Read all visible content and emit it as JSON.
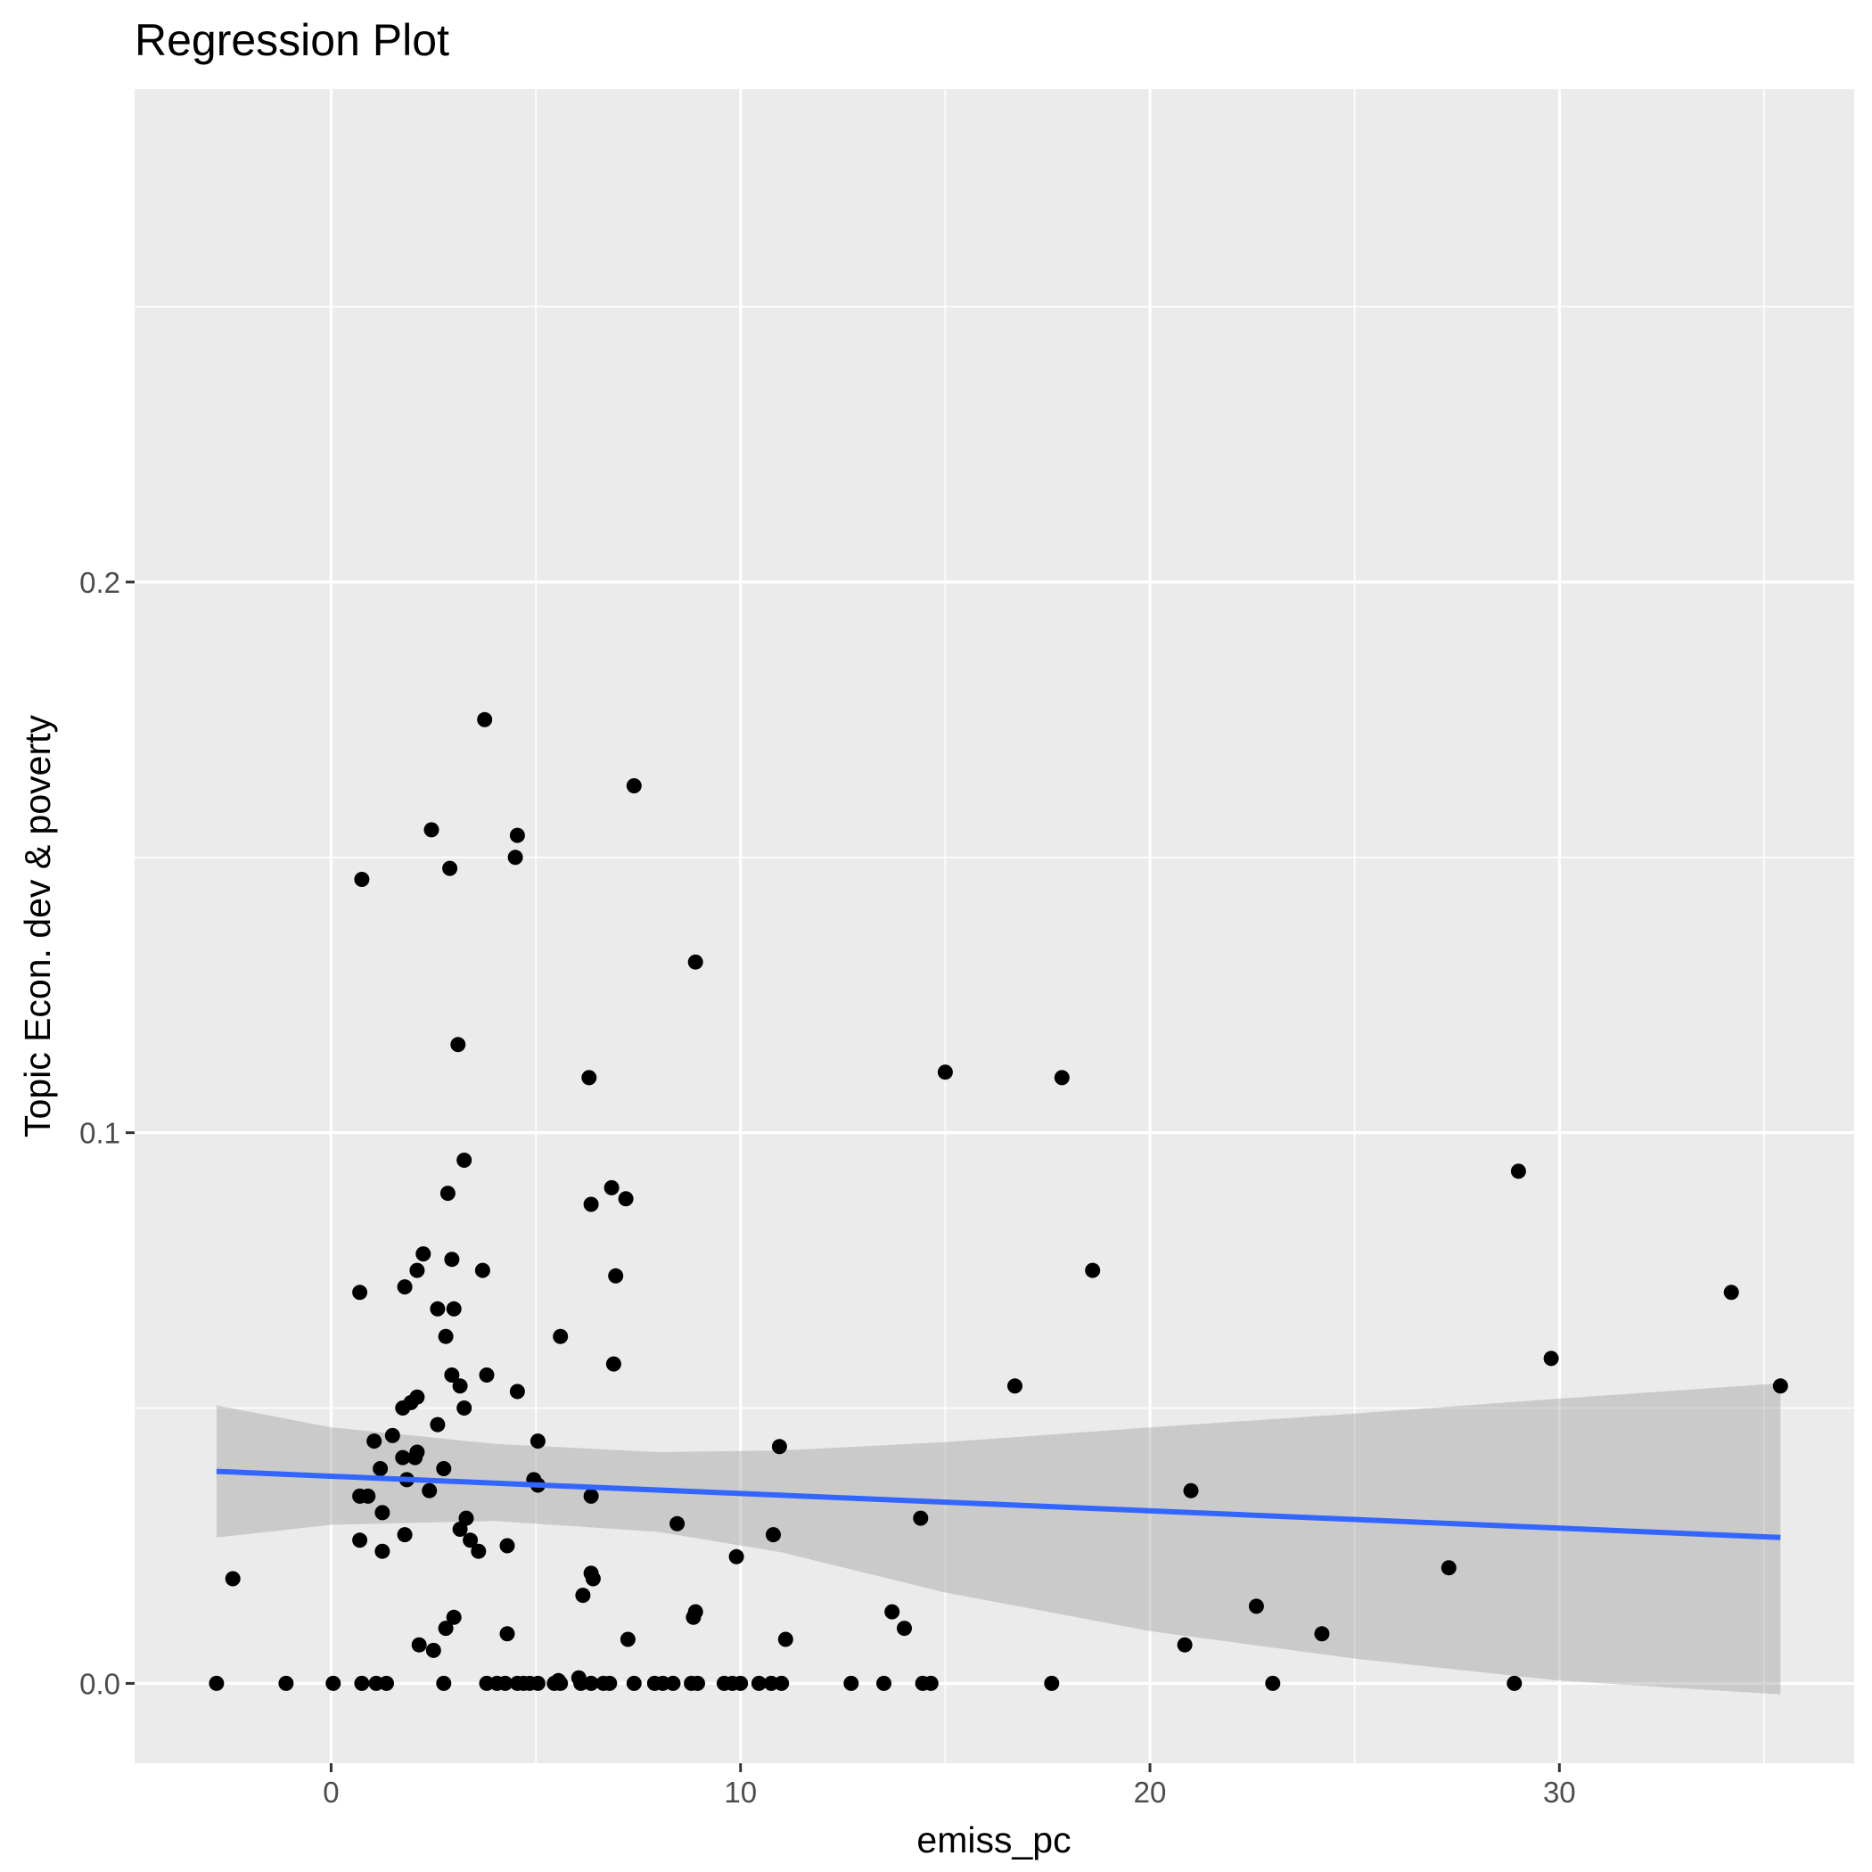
{
  "chart_data": {
    "type": "scatter",
    "title": "Regression Plot",
    "xlabel": "emiss_pc",
    "ylabel": "Topic Econ. dev & poverty",
    "xlim": [
      -4.8,
      37.2
    ],
    "ylim": [
      -0.0145,
      0.2895
    ],
    "x_ticks": [
      0,
      10,
      20,
      30
    ],
    "x_tick_labels": [
      "0",
      "10",
      "20",
      "30"
    ],
    "y_ticks": [
      0.0,
      0.1,
      0.2
    ],
    "y_tick_labels": [
      "0.0",
      "0.1",
      "0.2"
    ],
    "x_minor_ticks": [
      -5,
      5,
      15,
      25,
      35
    ],
    "y_minor_ticks": [
      0.05,
      0.15,
      0.25
    ],
    "grid": true,
    "colors": {
      "panel": "#ebebeb",
      "grid": "#ffffff",
      "points": "#000000",
      "line": "#3366ff",
      "ribbon": "#999999"
    },
    "points": [
      [
        -2.8,
        0
      ],
      [
        -1.1,
        0
      ],
      [
        0.05,
        0
      ],
      [
        0.75,
        0
      ],
      [
        1.1,
        0
      ],
      [
        1.35,
        0
      ],
      [
        2.75,
        0
      ],
      [
        3.8,
        0
      ],
      [
        4.05,
        0
      ],
      [
        4.25,
        0
      ],
      [
        4.55,
        0
      ],
      [
        4.7,
        0
      ],
      [
        4.85,
        0
      ],
      [
        5.05,
        0
      ],
      [
        5.45,
        0
      ],
      [
        5.6,
        0
      ],
      [
        6.1,
        0
      ],
      [
        6.35,
        0
      ],
      [
        6.65,
        0
      ],
      [
        6.8,
        0
      ],
      [
        7.4,
        0
      ],
      [
        7.9,
        0
      ],
      [
        8.1,
        0
      ],
      [
        8.35,
        0
      ],
      [
        8.8,
        0
      ],
      [
        8.95,
        0
      ],
      [
        9.6,
        0
      ],
      [
        9.8,
        0
      ],
      [
        10.0,
        0
      ],
      [
        10.45,
        0
      ],
      [
        10.75,
        0
      ],
      [
        11.0,
        0
      ],
      [
        12.7,
        0
      ],
      [
        13.5,
        0
      ],
      [
        14.45,
        0
      ],
      [
        14.65,
        0
      ],
      [
        17.6,
        0
      ],
      [
        23.0,
        0
      ],
      [
        28.9,
        0
      ],
      [
        6.05,
        0.001
      ],
      [
        5.55,
        0.0005
      ],
      [
        3.75,
        0.175
      ],
      [
        7.4,
        0.163
      ],
      [
        2.45,
        0.155
      ],
      [
        4.55,
        0.154
      ],
      [
        4.5,
        0.15
      ],
      [
        2.9,
        0.148
      ],
      [
        0.75,
        0.146
      ],
      [
        8.9,
        0.131
      ],
      [
        3.1,
        0.116
      ],
      [
        6.3,
        0.11
      ],
      [
        15.0,
        0.111
      ],
      [
        17.85,
        0.11
      ],
      [
        3.25,
        0.095
      ],
      [
        29.0,
        0.093
      ],
      [
        2.85,
        0.089
      ],
      [
        6.85,
        0.09
      ],
      [
        7.2,
        0.088
      ],
      [
        6.35,
        0.087
      ],
      [
        2.25,
        0.078
      ],
      [
        2.95,
        0.077
      ],
      [
        2.1,
        0.075
      ],
      [
        3.7,
        0.075
      ],
      [
        18.6,
        0.075
      ],
      [
        6.95,
        0.074
      ],
      [
        0.7,
        0.071
      ],
      [
        1.8,
        0.072
      ],
      [
        34.2,
        0.071
      ],
      [
        2.6,
        0.068
      ],
      [
        3.0,
        0.068
      ],
      [
        2.8,
        0.063
      ],
      [
        5.6,
        0.063
      ],
      [
        6.9,
        0.058
      ],
      [
        29.8,
        0.059
      ],
      [
        2.95,
        0.056
      ],
      [
        3.8,
        0.056
      ],
      [
        3.15,
        0.054
      ],
      [
        16.7,
        0.054
      ],
      [
        4.55,
        0.053
      ],
      [
        35.4,
        0.054
      ],
      [
        2.1,
        0.052
      ],
      [
        1.95,
        0.051
      ],
      [
        1.75,
        0.05
      ],
      [
        3.25,
        0.05
      ],
      [
        2.6,
        0.047
      ],
      [
        1.5,
        0.045
      ],
      [
        1.05,
        0.044
      ],
      [
        5.05,
        0.044
      ],
      [
        10.95,
        0.043
      ],
      [
        2.1,
        0.042
      ],
      [
        2.05,
        0.041
      ],
      [
        1.75,
        0.041
      ],
      [
        1.2,
        0.039
      ],
      [
        2.75,
        0.039
      ],
      [
        1.85,
        0.037
      ],
      [
        4.95,
        0.037
      ],
      [
        5.05,
        0.036
      ],
      [
        21.0,
        0.035
      ],
      [
        2.4,
        0.035
      ],
      [
        0.7,
        0.034
      ],
      [
        0.9,
        0.034
      ],
      [
        6.35,
        0.034
      ],
      [
        1.25,
        0.031
      ],
      [
        3.3,
        0.03
      ],
      [
        14.4,
        0.03
      ],
      [
        8.45,
        0.029
      ],
      [
        3.15,
        0.028
      ],
      [
        1.8,
        0.027
      ],
      [
        10.8,
        0.027
      ],
      [
        0.7,
        0.026
      ],
      [
        3.4,
        0.026
      ],
      [
        4.3,
        0.025
      ],
      [
        1.25,
        0.024
      ],
      [
        3.6,
        0.024
      ],
      [
        9.9,
        0.023
      ],
      [
        -2.4,
        0.019
      ],
      [
        6.35,
        0.02
      ],
      [
        27.3,
        0.021
      ],
      [
        6.4,
        0.019
      ],
      [
        6.15,
        0.016
      ],
      [
        22.6,
        0.014
      ],
      [
        3.0,
        0.012
      ],
      [
        8.9,
        0.013
      ],
      [
        8.85,
        0.012
      ],
      [
        13.7,
        0.013
      ],
      [
        2.8,
        0.01
      ],
      [
        14.0,
        0.01
      ],
      [
        24.2,
        0.009
      ],
      [
        4.3,
        0.009
      ],
      [
        11.1,
        0.008
      ],
      [
        7.25,
        0.008
      ],
      [
        2.15,
        0.007
      ],
      [
        20.85,
        0.007
      ],
      [
        2.5,
        0.006
      ]
    ],
    "regression": {
      "x_start": -2.8,
      "x_end": 35.4,
      "fit": [
        [
          -2.8,
          0.0385
        ],
        [
          35.4,
          0.0265
        ]
      ],
      "ribbon_upper": [
        [
          -2.8,
          0.0505
        ],
        [
          0,
          0.0465
        ],
        [
          4,
          0.0435
        ],
        [
          8,
          0.042
        ],
        [
          11,
          0.0423
        ],
        [
          15,
          0.0438
        ],
        [
          20,
          0.0465
        ],
        [
          25,
          0.049
        ],
        [
          30,
          0.0517
        ],
        [
          35.4,
          0.0545
        ]
      ],
      "ribbon_lower": [
        [
          -2.8,
          0.0265
        ],
        [
          0,
          0.0288
        ],
        [
          4,
          0.0295
        ],
        [
          8,
          0.0275
        ],
        [
          11,
          0.0238
        ],
        [
          15,
          0.0165
        ],
        [
          20,
          0.0095
        ],
        [
          25,
          0.0045
        ],
        [
          30,
          0.0005
        ],
        [
          35.4,
          -0.002
        ]
      ]
    }
  }
}
